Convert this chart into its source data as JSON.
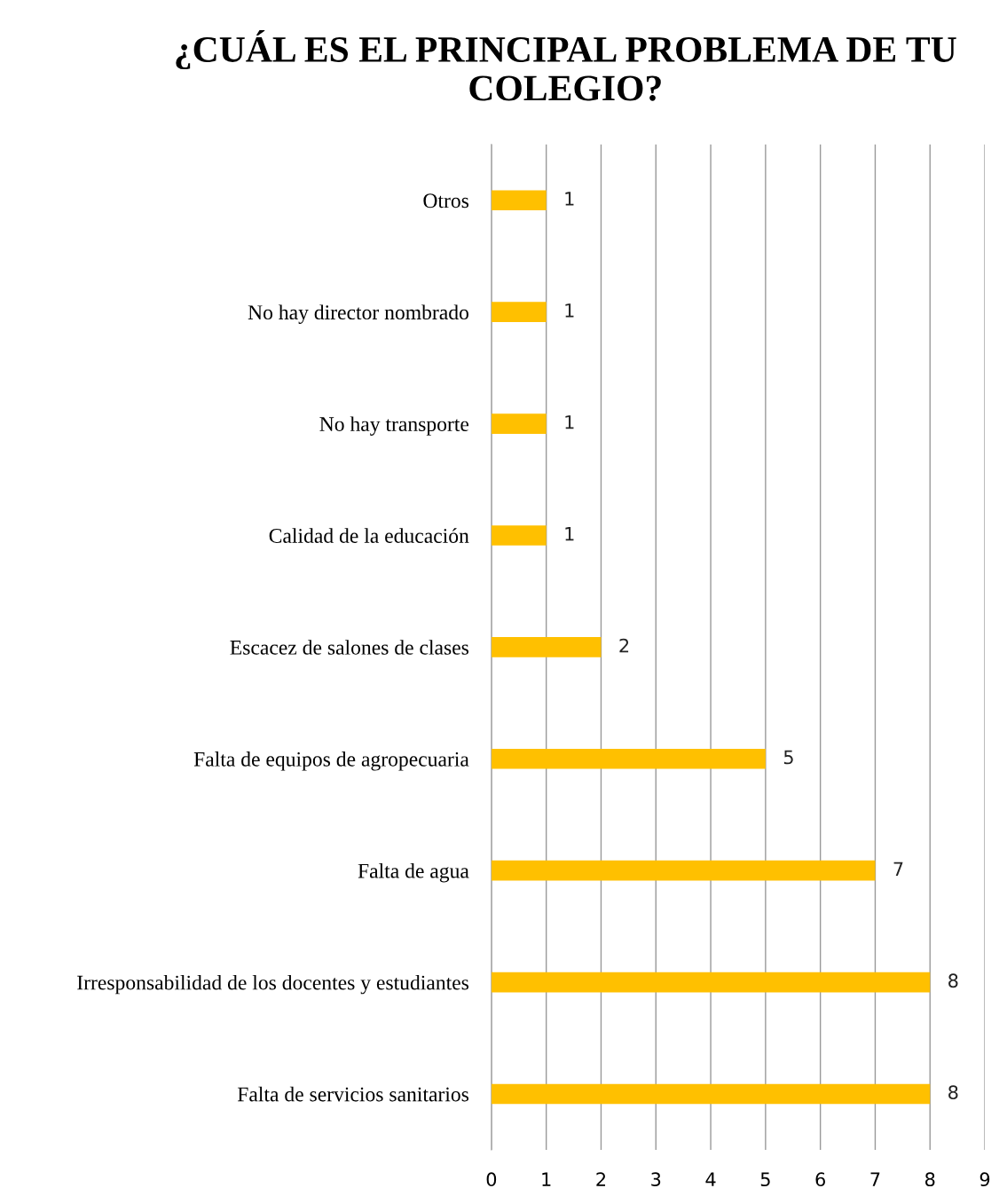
{
  "chart_data": {
    "type": "bar",
    "orientation": "horizontal",
    "title": "¿CUÁL ES EL PRINCIPAL PROBLEMA DE TU COLEGIO?",
    "categories": [
      "Otros",
      "No hay director nombrado",
      "No hay transporte",
      "Calidad de la educación",
      "Escacez de salones de clases",
      "Falta de equipos de agropecuaria",
      "Falta de agua",
      "Irresponsabilidad de los docentes y estudiantes",
      "Falta de servicios sanitarios"
    ],
    "values": [
      1,
      1,
      1,
      1,
      2,
      5,
      7,
      8,
      8
    ],
    "color": "#ffc000",
    "xlim": [
      0,
      9
    ],
    "xticks": [
      0,
      1,
      2,
      3,
      4,
      5,
      6,
      7,
      8,
      9
    ],
    "grid": "x",
    "data_labels": true
  }
}
